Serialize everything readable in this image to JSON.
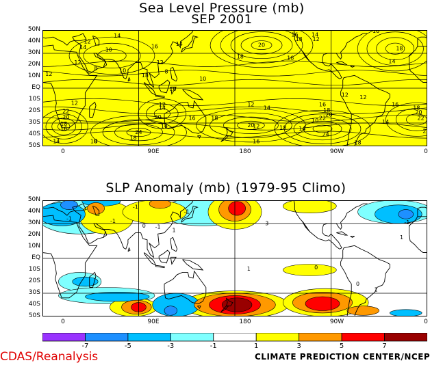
{
  "chart_data": [
    {
      "type": "heatmap",
      "title": "Sea Level Pressure (mb)",
      "subtitle": "SEP 2001",
      "fill_color": "#ffff00",
      "lat_ticks": [
        "50N",
        "40N",
        "30N",
        "20N",
        "10N",
        "EQ",
        "10S",
        "20S",
        "30S",
        "40S",
        "50S"
      ],
      "lon_ticks": [
        "0",
        "90E",
        "180",
        "90W",
        "0"
      ],
      "xlim": [
        0,
        360
      ],
      "ylim": [
        -50,
        50
      ],
      "grid": true,
      "contour_labels": [
        {
          "value": "12",
          "lon": 33,
          "lat": 22
        },
        {
          "value": "14",
          "lon": 38,
          "lat": 35
        },
        {
          "value": "12",
          "lon": 42,
          "lat": 40
        },
        {
          "value": "10",
          "lon": 62,
          "lat": 33
        },
        {
          "value": "10",
          "lon": 75,
          "lat": 15
        },
        {
          "value": "8",
          "lon": 50,
          "lat": 17
        },
        {
          "value": "14",
          "lon": 70,
          "lat": 45
        },
        {
          "value": "16",
          "lon": 105,
          "lat": 36
        },
        {
          "value": "14",
          "lon": 128,
          "lat": 38
        },
        {
          "value": "12",
          "lon": 110,
          "lat": 22
        },
        {
          "value": "8",
          "lon": 116,
          "lat": 14
        },
        {
          "value": "18",
          "lon": 96,
          "lat": 11
        },
        {
          "value": "10",
          "lon": 150,
          "lat": 8
        },
        {
          "value": "10",
          "lon": 122,
          "lat": -1
        },
        {
          "value": "12",
          "lon": 112,
          "lat": -14
        },
        {
          "value": "14",
          "lon": 112,
          "lat": -17
        },
        {
          "value": "20",
          "lon": 108,
          "lat": -25
        },
        {
          "value": "14",
          "lon": 114,
          "lat": -33
        },
        {
          "value": "16",
          "lon": 140,
          "lat": -26
        },
        {
          "value": "18",
          "lon": 161,
          "lat": -26
        },
        {
          "value": "12",
          "lon": 195,
          "lat": -14
        },
        {
          "value": "14",
          "lon": 210,
          "lat": -17
        },
        {
          "value": "20",
          "lon": 195,
          "lat": -32
        },
        {
          "value": "16",
          "lon": 200,
          "lat": -46
        },
        {
          "value": "18",
          "lon": 185,
          "lat": 27
        },
        {
          "value": "20",
          "lon": 205,
          "lat": 37
        },
        {
          "value": "16",
          "lon": 232,
          "lat": 26
        },
        {
          "value": "18",
          "lon": 225,
          "lat": -34
        },
        {
          "value": "16",
          "lon": 262,
          "lat": -14
        },
        {
          "value": "18",
          "lon": 266,
          "lat": -19
        },
        {
          "value": "20",
          "lon": 268,
          "lat": -23
        },
        {
          "value": "22",
          "lon": 262,
          "lat": -26
        },
        {
          "value": "24",
          "lon": 265,
          "lat": -40
        },
        {
          "value": "18",
          "lon": 295,
          "lat": -47
        },
        {
          "value": "16",
          "lon": 236,
          "lat": 46
        },
        {
          "value": "18",
          "lon": 240,
          "lat": 42
        },
        {
          "value": "14",
          "lon": 255,
          "lat": 46
        },
        {
          "value": "12",
          "lon": 256,
          "lat": 42
        },
        {
          "value": "12",
          "lon": 283,
          "lat": -6
        },
        {
          "value": "12",
          "lon": 300,
          "lat": -8
        },
        {
          "value": "16",
          "lon": 330,
          "lat": -14
        },
        {
          "value": "18",
          "lon": 350,
          "lat": -17
        },
        {
          "value": "20",
          "lon": 352,
          "lat": -21
        },
        {
          "value": "22",
          "lon": 354,
          "lat": -26
        },
        {
          "value": "14",
          "lon": 321,
          "lat": -29
        },
        {
          "value": "16",
          "lon": 312,
          "lat": 49
        },
        {
          "value": "18",
          "lon": 334,
          "lat": 34
        },
        {
          "value": "14",
          "lon": 327,
          "lat": 23
        },
        {
          "value": "12",
          "lon": 200,
          "lat": -33
        },
        {
          "value": "10",
          "lon": 255,
          "lat": -28
        },
        {
          "value": "14",
          "lon": 243,
          "lat": -35
        },
        {
          "value": "8",
          "lon": 50,
          "lat": -46
        },
        {
          "value": "10",
          "lon": 48,
          "lat": -46
        },
        {
          "value": "18",
          "lon": 85,
          "lat": -43
        },
        {
          "value": "24",
          "lon": 90,
          "lat": -38
        },
        {
          "value": "22",
          "lon": -1,
          "lat": -37
        },
        {
          "value": "14",
          "lon": 13,
          "lat": -46
        },
        {
          "value": "16",
          "lon": 20,
          "lat": -35
        },
        {
          "value": "18",
          "lon": 20,
          "lat": -31
        },
        {
          "value": "20",
          "lon": 22,
          "lat": -25
        },
        {
          "value": "22",
          "lon": 22,
          "lat": -20
        },
        {
          "value": "12",
          "lon": 6,
          "lat": 12
        },
        {
          "value": "12",
          "lon": 30,
          "lat": -13
        }
      ]
    },
    {
      "type": "heatmap",
      "title": "SLP Anomaly (mb) (1979-95 Climo)",
      "lat_ticks": [
        "50N",
        "40N",
        "30N",
        "20N",
        "10N",
        "EQ",
        "10S",
        "20S",
        "30S",
        "40S",
        "50S"
      ],
      "lon_ticks": [
        "0",
        "90E",
        "180",
        "90W",
        "0"
      ],
      "xlim": [
        0,
        360
      ],
      "ylim": [
        -50,
        50
      ],
      "grid": true,
      "colorbar": {
        "ticks": [
          "-7",
          "-5",
          "-3",
          "-1",
          "1",
          "3",
          "5",
          "7"
        ],
        "colors": [
          "#9933ff",
          "#1e90ff",
          "#00bfff",
          "#7fffff",
          "#ffffff",
          "#ffff00",
          "#ff9900",
          "#ff0000",
          "#990000"
        ]
      },
      "contour_labels": [
        {
          "value": "-1",
          "lon": 25,
          "lat": 34
        },
        {
          "value": "-1",
          "lon": 87,
          "lat": 44
        },
        {
          "value": "-1",
          "lon": 108,
          "lat": 27
        },
        {
          "value": "1",
          "lon": 123,
          "lat": 24
        },
        {
          "value": "-1",
          "lon": 135,
          "lat": 40
        },
        {
          "value": "0",
          "lon": 95,
          "lat": 28
        },
        {
          "value": "3",
          "lon": 210,
          "lat": 30
        },
        {
          "value": "0",
          "lon": 256,
          "lat": -8
        },
        {
          "value": "1",
          "lon": 193,
          "lat": -9
        },
        {
          "value": "0",
          "lon": 295,
          "lat": -22
        },
        {
          "value": "1",
          "lon": 312,
          "lat": -27
        },
        {
          "value": "-1",
          "lon": 341,
          "lat": 31
        },
        {
          "value": "1",
          "lon": 336,
          "lat": 18
        },
        {
          "value": "-1",
          "lon": 66,
          "lat": 32
        }
      ],
      "anomaly_blobs": [
        {
          "value": -3,
          "lon": 18,
          "lat": 38,
          "rx": 22,
          "ry": 10
        },
        {
          "value": -5,
          "lon": 25,
          "lat": 46,
          "rx": 8,
          "ry": 4
        },
        {
          "value": -3,
          "lon": 55,
          "lat": 49,
          "rx": 18,
          "ry": 4
        },
        {
          "value": -1,
          "lon": 35,
          "lat": 36,
          "rx": 40,
          "ry": 15
        },
        {
          "value": 1,
          "lon": 60,
          "lat": 35,
          "rx": 25,
          "ry": 14
        },
        {
          "value": 3,
          "lon": 50,
          "lat": 43,
          "rx": 8,
          "ry": 5
        },
        {
          "value": -1,
          "lon": 150,
          "lat": 40,
          "rx": 40,
          "ry": 12
        },
        {
          "value": 1,
          "lon": 105,
          "lat": 40,
          "rx": 30,
          "ry": 10
        },
        {
          "value": 3,
          "lon": 110,
          "lat": 47,
          "rx": 10,
          "ry": 4
        },
        {
          "value": 1,
          "lon": 180,
          "lat": 40,
          "rx": 25,
          "ry": 15
        },
        {
          "value": 3,
          "lon": 180,
          "lat": 42,
          "rx": 15,
          "ry": 10
        },
        {
          "value": 5,
          "lon": 182,
          "lat": 43,
          "rx": 8,
          "ry": 6
        },
        {
          "value": 1,
          "lon": 250,
          "lat": 45,
          "rx": 25,
          "ry": 6
        },
        {
          "value": -1,
          "lon": 330,
          "lat": 40,
          "rx": 35,
          "ry": 10
        },
        {
          "value": -3,
          "lon": 333,
          "lat": 38,
          "rx": 22,
          "ry": 8
        },
        {
          "value": -5,
          "lon": 340,
          "lat": 38,
          "rx": 7,
          "ry": 4
        },
        {
          "value": -1,
          "lon": 35,
          "lat": -20,
          "rx": 20,
          "ry": 8
        },
        {
          "value": -3,
          "lon": 40,
          "lat": -20,
          "rx": 12,
          "ry": 4
        },
        {
          "value": -1,
          "lon": 60,
          "lat": -32,
          "rx": 45,
          "ry": 7
        },
        {
          "value": -3,
          "lon": 70,
          "lat": -33,
          "rx": 30,
          "ry": 4
        },
        {
          "value": 1,
          "lon": 85,
          "lat": -42,
          "rx": 22,
          "ry": 8
        },
        {
          "value": 3,
          "lon": 88,
          "lat": -42,
          "rx": 14,
          "ry": 6
        },
        {
          "value": 5,
          "lon": 90,
          "lat": -42,
          "rx": 7,
          "ry": 4
        },
        {
          "value": -3,
          "lon": 125,
          "lat": -40,
          "rx": 22,
          "ry": 10
        },
        {
          "value": -5,
          "lon": 120,
          "lat": -45,
          "rx": 6,
          "ry": 4
        },
        {
          "value": 1,
          "lon": 180,
          "lat": -40,
          "rx": 50,
          "ry": 12
        },
        {
          "value": 3,
          "lon": 180,
          "lat": -40,
          "rx": 38,
          "ry": 10
        },
        {
          "value": 5,
          "lon": 180,
          "lat": -40,
          "rx": 24,
          "ry": 8
        },
        {
          "value": 7,
          "lon": 182,
          "lat": -40,
          "rx": 14,
          "ry": 6
        },
        {
          "value": 1,
          "lon": 265,
          "lat": -38,
          "rx": 40,
          "ry": 12
        },
        {
          "value": 3,
          "lon": 262,
          "lat": -38,
          "rx": 28,
          "ry": 9
        },
        {
          "value": 5,
          "lon": 262,
          "lat": -39,
          "rx": 16,
          "ry": 6
        },
        {
          "value": 1,
          "lon": 250,
          "lat": -10,
          "rx": 25,
          "ry": 5
        },
        {
          "value": 3,
          "lon": 300,
          "lat": -45,
          "rx": 15,
          "ry": 4
        },
        {
          "value": -3,
          "lon": 340,
          "lat": -47,
          "rx": 15,
          "ry": 3
        }
      ]
    }
  ],
  "footer": {
    "left": "CDAS/Reanalysis",
    "right": "CLIMATE PREDICTION CENTER/NCEP"
  }
}
